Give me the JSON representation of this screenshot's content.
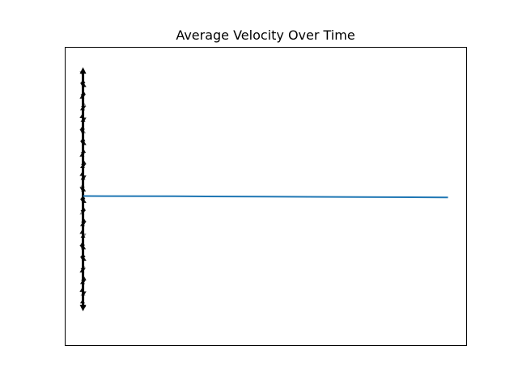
{
  "chart_data": {
    "type": "line",
    "title": "Average Velocity Over Time",
    "xlabel": "",
    "ylabel": "",
    "axes_visible": false,
    "grid": false,
    "xlim": [
      -0.05,
      1.05
    ],
    "ylim": [
      -1.1,
      1.1
    ],
    "series": [
      {
        "type": "line",
        "color": "#1f77b4",
        "x": [
          0.0,
          0.25,
          0.5,
          0.75,
          1.0
        ],
        "y": [
          0.0,
          -0.002,
          -0.005,
          -0.008,
          -0.01
        ]
      }
    ],
    "vectors": {
      "type": "quiver",
      "color": "#000000",
      "x": 0.0,
      "y_range": [
        -0.85,
        0.95
      ],
      "count": 60
    }
  }
}
